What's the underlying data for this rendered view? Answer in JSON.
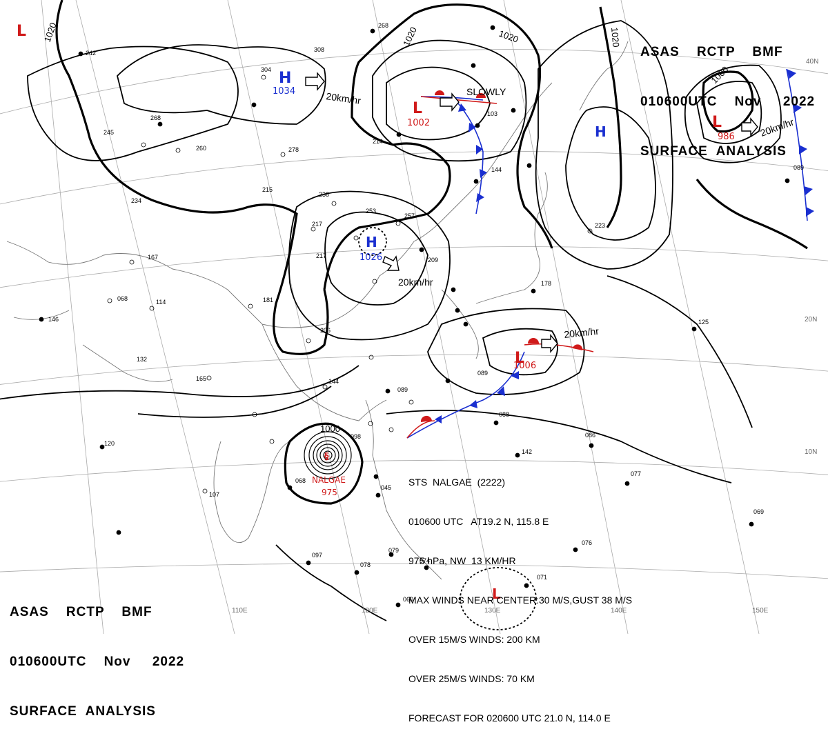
{
  "header": {
    "line1": "ASAS    RCTP    BMF",
    "line2": "010600UTC    Nov     2022",
    "line3": "SURFACE  ANALYSIS"
  },
  "storm_info": {
    "line1": "STS  NALGAE  (2222)",
    "line2": "010600 UTC   AT19.2 N, 115.8 E",
    "line3": "975 hPa, NW  13 KM/HR",
    "line4": "MAX WINDS NEAR CENTER:30 M/S,GUST 38 M/S",
    "line5": "OVER 15M/S WINDS: 200 KM",
    "line6": "OVER 25M/S WINDS: 70 KM",
    "line7": "FORECAST FOR 020600 UTC 21.0 N, 114.0 E"
  },
  "pressure_systems": [
    {
      "type": "H",
      "value": "1034",
      "color": "#1a2fd0"
    },
    {
      "type": "H",
      "value": "1026",
      "color": "#1a2fd0"
    },
    {
      "type": "H",
      "value": "",
      "color": "#1a2fd0"
    },
    {
      "type": "L",
      "value": "1002",
      "color": "#d01a1a"
    },
    {
      "type": "L",
      "value": "986",
      "color": "#d01a1a"
    },
    {
      "type": "L",
      "value": "1006",
      "color": "#d01a1a"
    },
    {
      "type": "L",
      "value": "",
      "color": "#d01a1a"
    },
    {
      "type": "L",
      "value": "",
      "color": "#d01a1a"
    }
  ],
  "typhoon": {
    "name": "NALGAE",
    "pressure": "975",
    "symbol": "§"
  },
  "motion_labels": [
    "20km/hr",
    "SLOWLY",
    "20km/hr",
    "20km/hr",
    "20km/hr"
  ],
  "isobar_labels": [
    "1020",
    "1020",
    "1020",
    "1020",
    "1000",
    "1000"
  ],
  "lon_labels": [
    "110E",
    "120E",
    "130E",
    "140E",
    "150E"
  ],
  "lat_labels": [
    "40N",
    "20N",
    "10N"
  ],
  "colors": {
    "high": "#1a2fd0",
    "low": "#d01a1a",
    "cold_front": "#1a2fd0",
    "warm_front": "#d01a1a",
    "coast": "#777777"
  }
}
